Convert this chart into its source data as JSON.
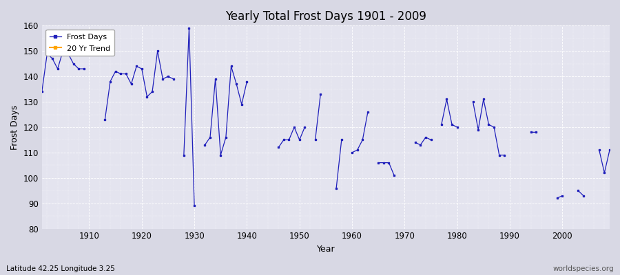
{
  "title": "Yearly Total Frost Days 1901 - 2009",
  "xlabel": "Year",
  "ylabel": "Frost Days",
  "subtitle": "Latitude 42.25 Longitude 3.25",
  "watermark": "worldspecies.org",
  "fig_bg_color": "#d8d8e4",
  "plot_bg_color": "#e4e4ef",
  "line_color": "#2020bb",
  "ylim": [
    80,
    160
  ],
  "xlim": [
    1901,
    2009
  ],
  "yticks": [
    80,
    90,
    100,
    110,
    120,
    130,
    140,
    150,
    160
  ],
  "xticks": [
    1910,
    1920,
    1930,
    1940,
    1950,
    1960,
    1970,
    1980,
    1990,
    2000
  ],
  "legend_labels": [
    "Frost Days",
    "20 Yr Trend"
  ],
  "legend_colors": [
    "#2020bb",
    "#ffa500"
  ],
  "years": [
    1901,
    1902,
    1903,
    1904,
    1905,
    1906,
    1907,
    1908,
    1909,
    1913,
    1914,
    1915,
    1916,
    1917,
    1918,
    1919,
    1920,
    1921,
    1922,
    1923,
    1924,
    1925,
    1926,
    1928,
    1929,
    1930,
    1932,
    1933,
    1934,
    1935,
    1936,
    1937,
    1938,
    1939,
    1940,
    1946,
    1947,
    1948,
    1949,
    1950,
    1951,
    1953,
    1954,
    1957,
    1958,
    1960,
    1961,
    1962,
    1963,
    1965,
    1966,
    1967,
    1968,
    1972,
    1973,
    1974,
    1975,
    1977,
    1978,
    1979,
    1980,
    1983,
    1984,
    1985,
    1986,
    1987,
    1988,
    1989,
    1994,
    1995,
    1999,
    2000,
    2003,
    2004,
    2007,
    2008,
    2009
  ],
  "frost_days": [
    134,
    149,
    147,
    143,
    150,
    149,
    145,
    143,
    143,
    123,
    138,
    142,
    141,
    141,
    137,
    144,
    143,
    132,
    134,
    150,
    139,
    140,
    139,
    109,
    159,
    89,
    113,
    116,
    139,
    109,
    116,
    144,
    137,
    129,
    138,
    112,
    115,
    115,
    120,
    115,
    120,
    115,
    133,
    96,
    115,
    110,
    111,
    115,
    126,
    106,
    106,
    106,
    101,
    114,
    113,
    116,
    115,
    121,
    131,
    121,
    120,
    130,
    119,
    131,
    121,
    120,
    109,
    109,
    118,
    118,
    92,
    93,
    95,
    93,
    111,
    102,
    111
  ]
}
